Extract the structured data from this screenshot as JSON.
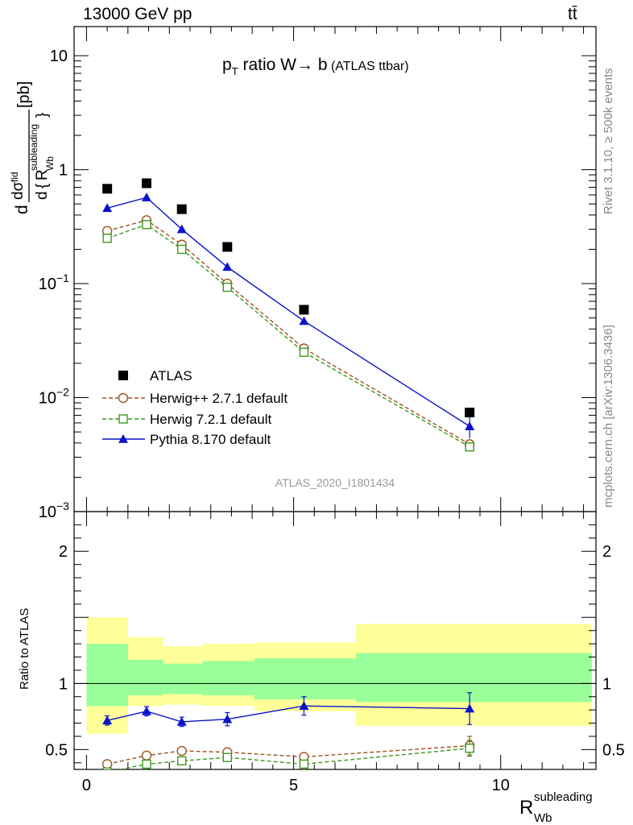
{
  "header": {
    "left": "13000 GeV pp",
    "right": "tt̄"
  },
  "side_labels": {
    "rivet": "Rivet 3.1.10, ≥ 500k events",
    "mcplots": "mcplots.cern.ch [arXiv:1306.3436]"
  },
  "chart_data": {
    "type": "line",
    "title": {
      "p": "p",
      "sub": "T",
      "main": " ratio W→ b",
      "small": " (ATLAS ttbar)"
    },
    "watermark": "ATLAS_2020_I1801434",
    "ylabel_main": {
      "d1": "d",
      "dsigma": "dσ",
      "sup_fid": "fid",
      "d2": "d",
      "brace_open": "{",
      "R": "R",
      "sub_wb": "Wb",
      "sup_sub": "subleading",
      "brace_close": "}",
      "unit": "[pb]"
    },
    "ylabel_ratio": "Ratio to ATLAS",
    "xlabel": {
      "R": "R",
      "sub": "Wb",
      "sup": "subleading"
    },
    "xlim": [
      -0.3,
      12.3
    ],
    "main_ylim": [
      0.001,
      18
    ],
    "main_yscale": "log",
    "main_yticks": [
      {
        "v": 10,
        "base": "10",
        "exp": ""
      },
      {
        "v": 1,
        "base": "1",
        "exp": ""
      },
      {
        "v": 0.1,
        "base": "10",
        "exp": "−1"
      },
      {
        "v": 0.01,
        "base": "10",
        "exp": "−2"
      },
      {
        "v": 0.001,
        "base": "10",
        "exp": "−3"
      }
    ],
    "ratio_ylim": [
      0.35,
      2.3
    ],
    "ratio_yticks": [
      {
        "v": 0.5,
        "label": "0.5"
      },
      {
        "v": 1,
        "label": "1"
      },
      {
        "v": 2,
        "label": "2"
      }
    ],
    "xticks": [
      {
        "v": 0,
        "label": "0"
      },
      {
        "v": 5,
        "label": "5"
      },
      {
        "v": 10,
        "label": "10"
      }
    ],
    "x": [
      0.5,
      1.45,
      2.3,
      3.4,
      5.25,
      9.25
    ],
    "bin_edges": [
      0,
      1,
      1.9,
      2.75,
      4.0,
      6.5,
      12.0
    ],
    "band_edges": [
      0,
      1.0,
      1.85,
      2.8,
      4.05,
      6.5,
      12.2
    ],
    "series": [
      {
        "name": "ATLAS",
        "values": [
          0.68,
          0.76,
          0.45,
          0.21,
          0.059,
          0.0074
        ],
        "color": "#000000",
        "marker": "square-filled",
        "line": "none"
      },
      {
        "name": "Herwig++ 2.7.1 default",
        "values": [
          0.29,
          0.36,
          0.22,
          0.1,
          0.027,
          0.0039
        ],
        "ratio": [
          0.39,
          0.455,
          0.49,
          0.48,
          0.445,
          0.53
        ],
        "ratio_err": [
          0.0,
          0.0,
          0.0,
          0.02,
          0.03,
          0.07
        ],
        "color": "#a0521e",
        "marker": "circle-open",
        "line": "dashed"
      },
      {
        "name": "Herwig 7.2.1 default",
        "values": [
          0.25,
          0.33,
          0.2,
          0.093,
          0.025,
          0.0037
        ],
        "ratio": [
          0.33,
          0.39,
          0.415,
          0.44,
          0.39,
          0.51
        ],
        "ratio_err": [
          0.0,
          0.0,
          0.0,
          0.0,
          0.0,
          0.06
        ],
        "color": "#3a9a1a",
        "marker": "square-open",
        "line": "dashed"
      },
      {
        "name": "Pythia 8.170 default",
        "values": [
          0.46,
          0.57,
          0.3,
          0.14,
          0.047,
          0.0056
        ],
        "main_err": [
          0.0,
          0.0,
          0.0,
          0.0,
          0.0,
          0.0012
        ],
        "ratio": [
          0.72,
          0.79,
          0.71,
          0.73,
          0.83,
          0.81
        ],
        "ratio_err": [
          0.035,
          0.035,
          0.035,
          0.05,
          0.07,
          0.12
        ],
        "color": "#0b14c8",
        "marker": "triangle-filled",
        "line": "solid"
      }
    ],
    "ratio_bands": {
      "yellow": [
        [
          0.62,
          1.5
        ],
        [
          0.83,
          1.35
        ],
        [
          0.84,
          1.28
        ],
        [
          0.83,
          1.3
        ],
        [
          0.79,
          1.31
        ],
        [
          0.68,
          1.45
        ]
      ],
      "green": [
        [
          0.83,
          1.3
        ],
        [
          0.91,
          1.18
        ],
        [
          0.92,
          1.15
        ],
        [
          0.91,
          1.17
        ],
        [
          0.88,
          1.19
        ],
        [
          0.86,
          1.23
        ]
      ],
      "yellow_color": "#ffff99",
      "green_color": "#99ff99"
    },
    "legend_position": "lower-left",
    "grid": false
  }
}
